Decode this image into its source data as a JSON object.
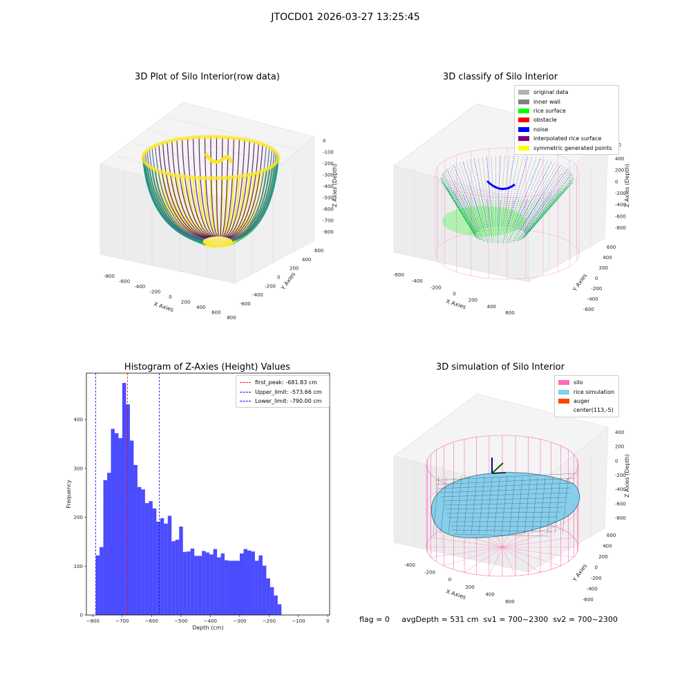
{
  "suptitle": "JTOCD01 2026-03-27 13:25:45",
  "panels": {
    "raw": {
      "title": "3D Plot of Silo Interior(row data)",
      "xlabel": "X Axies",
      "ylabel": "Y Axies",
      "zlabel": "Z Axies (Depth)",
      "xticks": [
        "-800",
        "-600",
        "-400",
        "-200",
        "0",
        "200",
        "400",
        "600",
        "800"
      ],
      "yticks": [
        "-600",
        "-400",
        "-200",
        "0",
        "200",
        "400",
        "600"
      ],
      "zticks": [
        "0",
        "-100",
        "-200",
        "-300",
        "-400",
        "-500",
        "-600",
        "-700",
        "-800"
      ],
      "colormap": [
        "#440154",
        "#3b528b",
        "#21918c",
        "#5ec962",
        "#fde725"
      ]
    },
    "classify": {
      "title": "3D classify of Silo Interior",
      "xlabel": "X Axies",
      "ylabel": "Y Axies",
      "zlabel": "Z Axies (Depth)",
      "xticks": [
        "-600",
        "-400",
        "-200",
        "0",
        "200",
        "400",
        "600"
      ],
      "yticks": [
        "-600",
        "-400",
        "-200",
        "0",
        "200",
        "400",
        "600"
      ],
      "zticks": [
        "400",
        "200",
        "0",
        "-200",
        "-400",
        "-600",
        "-800"
      ],
      "zticks_clipped": "00",
      "legend": [
        {
          "label": "original data",
          "color": "#b3b3b3"
        },
        {
          "label": "inner wall",
          "color": "#808080"
        },
        {
          "label": "rice surface",
          "color": "#00ff00"
        },
        {
          "label": "obstacle",
          "color": "#ff0000"
        },
        {
          "label": "noise",
          "color": "#0000ff"
        },
        {
          "label": "interpolated rice surface",
          "color": "#800080"
        },
        {
          "label": "symmetric generated points",
          "color": "#ffff00"
        }
      ]
    },
    "simulation": {
      "title": "3D simulation of Silo Interior",
      "xlabel": "X Axies",
      "ylabel": "Y Axies",
      "zlabel": "Z Axies (Depth)",
      "xticks": [
        "-400",
        "-200",
        "0",
        "200",
        "400",
        "600"
      ],
      "yticks": [
        "-600",
        "-400",
        "-200",
        "0",
        "200",
        "400",
        "600"
      ],
      "zticks": [
        "400",
        "200",
        "0",
        "-200",
        "-400",
        "-600",
        "-800"
      ],
      "legend": [
        {
          "label": "silo",
          "color": "#ff69b4"
        },
        {
          "label": "rice simulation",
          "color": "#87ceeb"
        },
        {
          "label": "auger",
          "color": "#ff4500"
        },
        {
          "label": "center(113,-5)",
          "color": ""
        }
      ]
    }
  },
  "status_text": "flag = 0     avgDepth = 531 cm  sv1 = 700~2300  sv2 = 700~2300",
  "chart_data": [
    {
      "type": "bar",
      "title": "Histogram of Z-Axies (Height) Values",
      "xlabel": "Depth (cm)",
      "ylabel": "Frequency",
      "bar_color": "#0000ff",
      "bar_opacity": 0.7,
      "bin_width": 12.9,
      "bin_start": -790,
      "values": [
        122,
        139,
        276,
        291,
        381,
        372,
        362,
        475,
        431,
        357,
        307,
        262,
        257,
        229,
        233,
        218,
        191,
        198,
        187,
        203,
        151,
        154,
        181,
        129,
        130,
        136,
        121,
        121,
        131,
        128,
        124,
        135,
        118,
        126,
        112,
        111,
        111,
        111,
        126,
        135,
        132,
        130,
        111,
        122,
        101,
        75,
        57,
        40,
        22
      ],
      "xlim": [
        -822,
        6
      ],
      "ylim": [
        0,
        495
      ],
      "xticks": [
        -800,
        -700,
        -600,
        -500,
        -400,
        -300,
        -200,
        -100,
        0
      ],
      "yticks": [
        0,
        100,
        200,
        300,
        400
      ],
      "vlines": [
        {
          "label": "first_peak: -681.83 cm",
          "x": -681.83,
          "color": "#ff0000"
        },
        {
          "label": "Upper_limit: -573.66 cm",
          "x": -573.66,
          "color": "#0000ff"
        },
        {
          "label": "Lower_limit: -790.00 cm",
          "x": -790.0,
          "color": "#0000ff"
        }
      ],
      "legend_position": "top-right"
    }
  ]
}
